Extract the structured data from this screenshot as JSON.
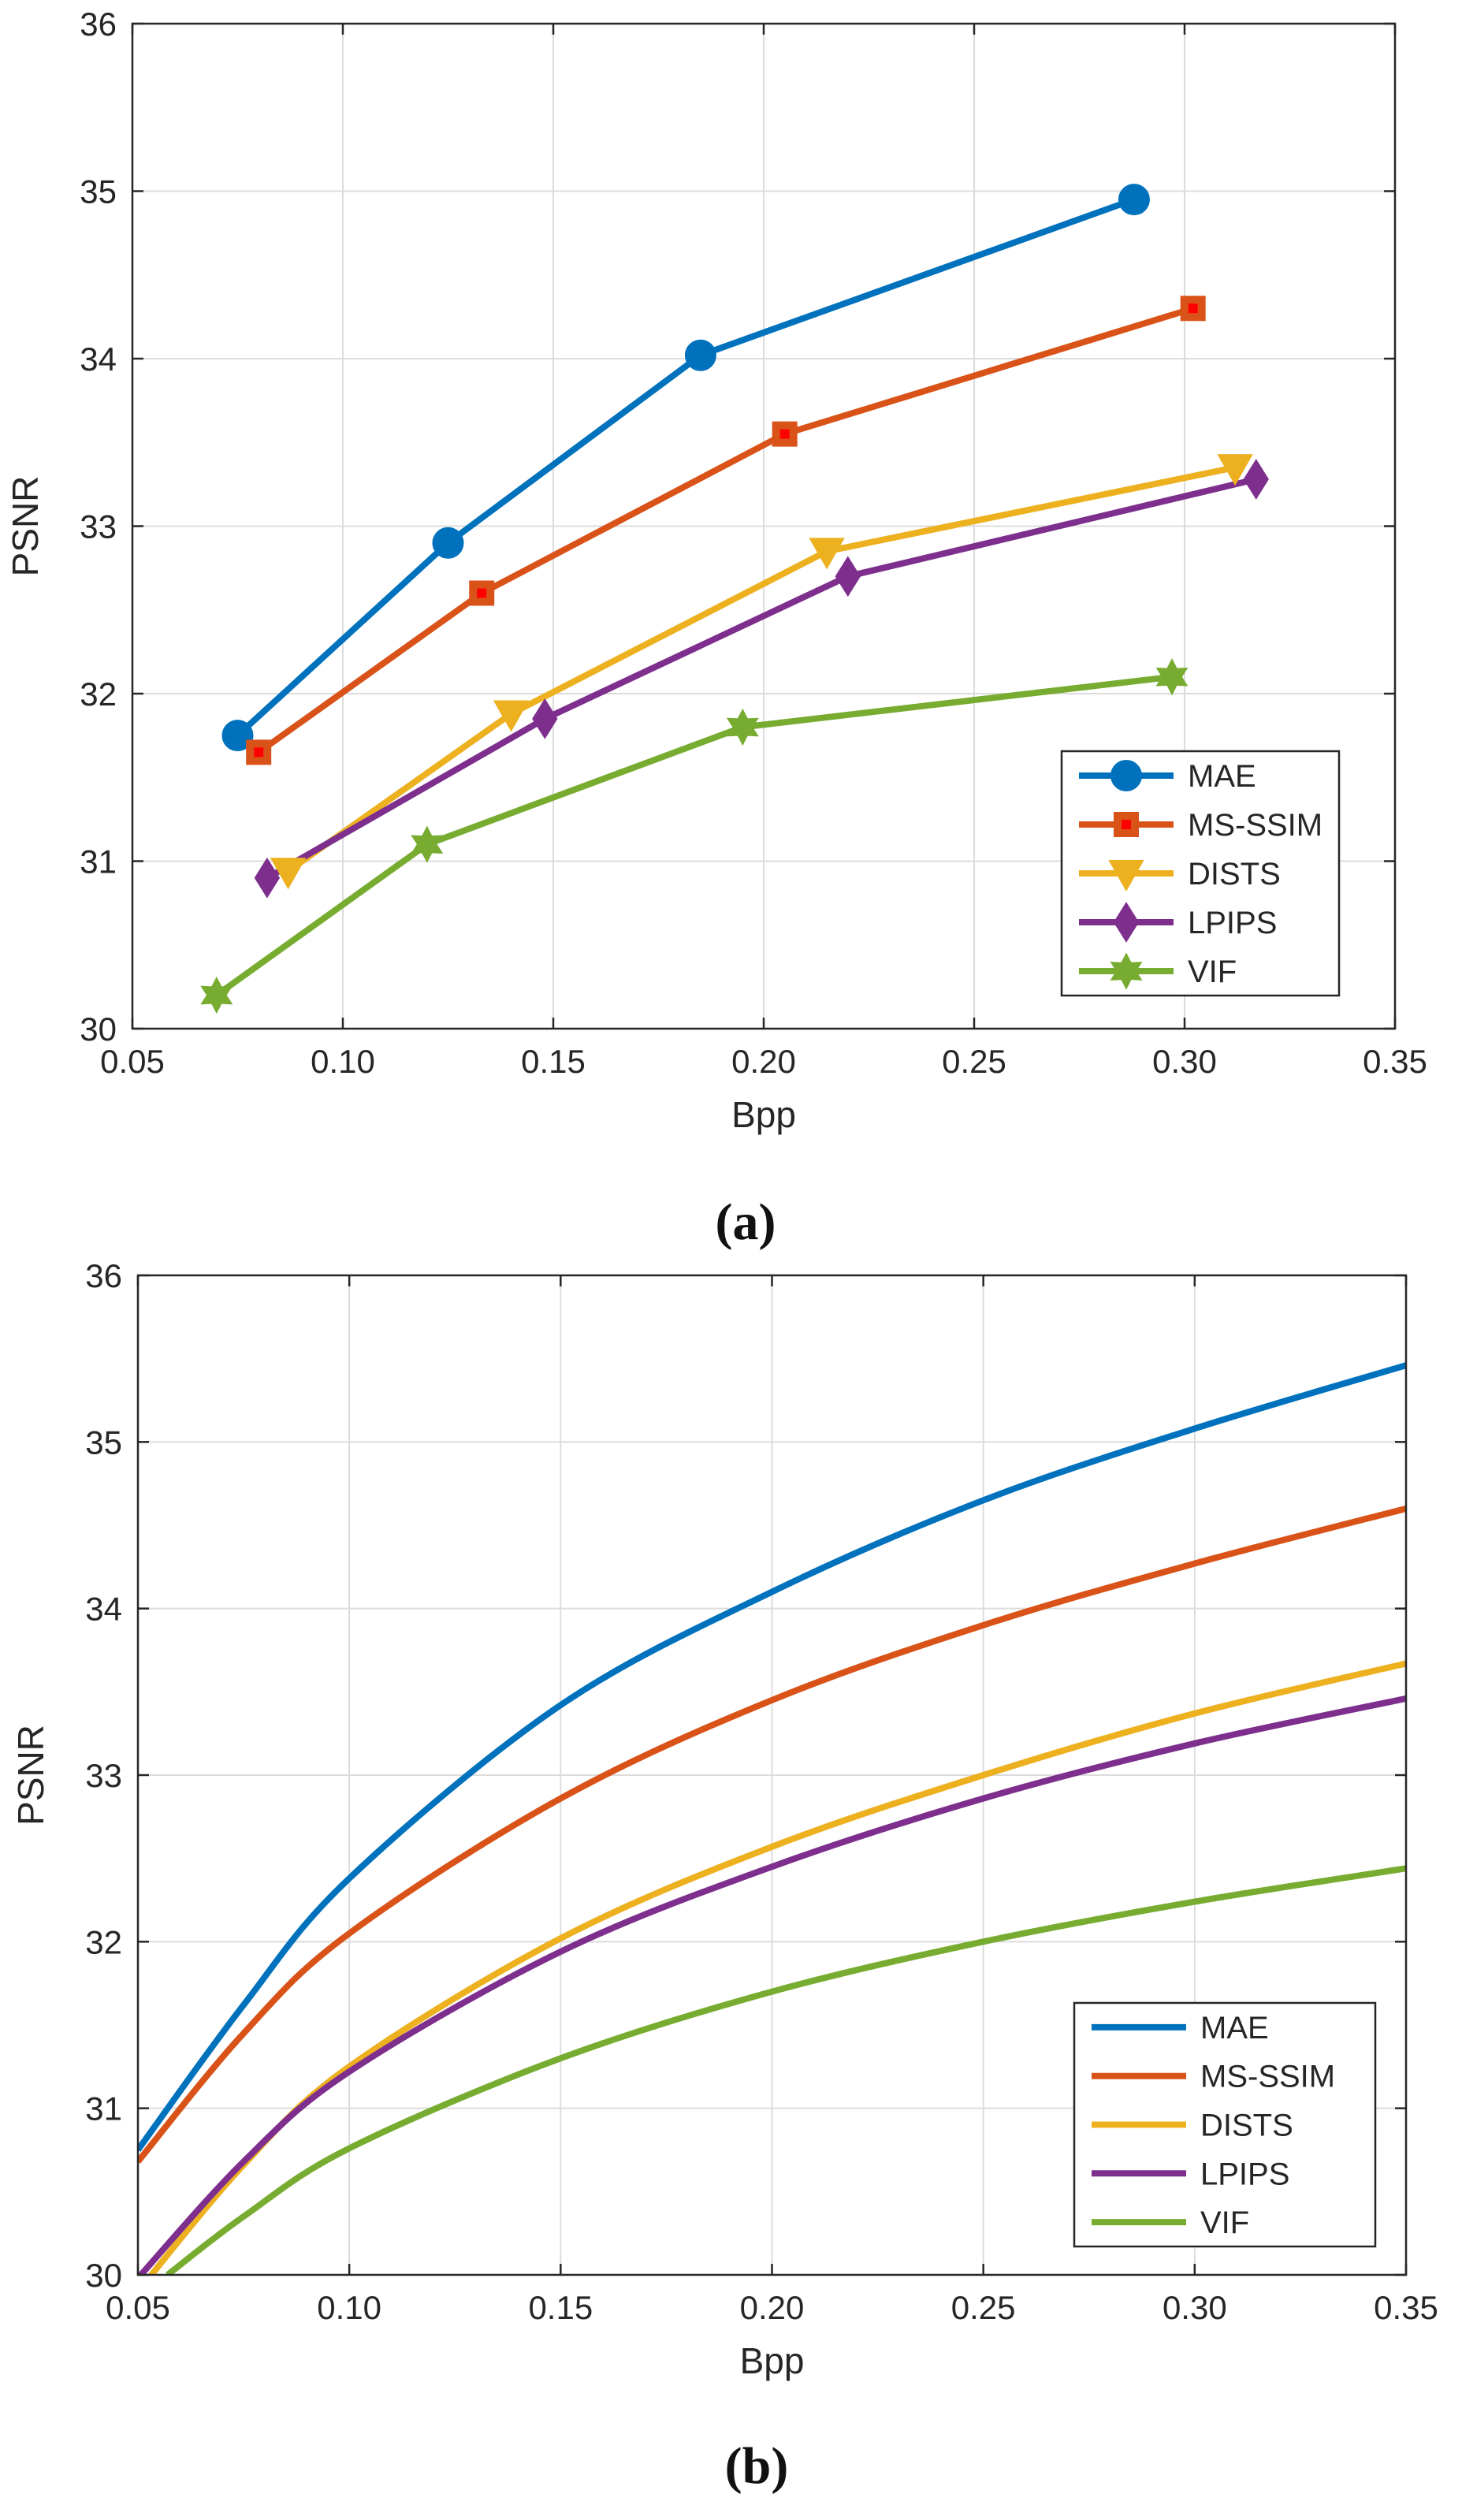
{
  "colors": {
    "MAE": "#0072BD",
    "MS-SSIM": "#D95319",
    "DISTS": "#EDB120",
    "LPIPS": "#7E2F8E",
    "VIF": "#77AC30"
  },
  "chart_data": [
    {
      "type": "line",
      "panel_label": "(a)",
      "xlabel": "Bpp",
      "ylabel": "PSNR",
      "xlim": [
        0.05,
        0.35
      ],
      "ylim": [
        30,
        36
      ],
      "xticks": [
        "0.05",
        "0.10",
        "0.15",
        "0.20",
        "0.25",
        "0.30",
        "0.35"
      ],
      "yticks": [
        "30",
        "31",
        "32",
        "33",
        "34",
        "35",
        "36"
      ],
      "grid": true,
      "legend_position": "bottom-right",
      "series": [
        {
          "name": "MAE",
          "marker": "circle",
          "x": [
            0.075,
            0.125,
            0.185,
            0.288
          ],
          "y": [
            31.75,
            32.9,
            34.02,
            34.95
          ]
        },
        {
          "name": "MS-SSIM",
          "marker": "square",
          "x": [
            0.08,
            0.133,
            0.205,
            0.302
          ],
          "y": [
            31.65,
            32.6,
            33.55,
            34.3
          ]
        },
        {
          "name": "DISTS",
          "marker": "triangle-down",
          "x": [
            0.087,
            0.14,
            0.215,
            0.312
          ],
          "y": [
            30.94,
            31.88,
            32.85,
            33.35
          ]
        },
        {
          "name": "LPIPS",
          "marker": "diamond",
          "x": [
            0.082,
            0.148,
            0.22,
            0.317
          ],
          "y": [
            30.9,
            31.85,
            32.7,
            33.28
          ]
        },
        {
          "name": "VIF",
          "marker": "hexagram",
          "x": [
            0.07,
            0.12,
            0.195,
            0.297
          ],
          "y": [
            30.2,
            31.1,
            31.8,
            32.1
          ]
        }
      ]
    },
    {
      "type": "line",
      "panel_label": "(b)",
      "xlabel": "Bpp",
      "ylabel": "PSNR",
      "xlim": [
        0.05,
        0.35
      ],
      "ylim": [
        30,
        36
      ],
      "xticks": [
        "0.05",
        "0.10",
        "0.15",
        "0.20",
        "0.25",
        "0.30",
        "0.35"
      ],
      "yticks": [
        "30",
        "31",
        "32",
        "33",
        "34",
        "35",
        "36"
      ],
      "grid": true,
      "legend_position": "bottom-right",
      "series": [
        {
          "name": "MAE",
          "x": [
            0.05,
            0.075,
            0.1,
            0.15,
            0.2,
            0.25,
            0.3,
            0.35
          ],
          "y": [
            30.75,
            31.62,
            32.38,
            33.42,
            34.1,
            34.65,
            35.08,
            35.46
          ]
        },
        {
          "name": "MS-SSIM",
          "x": [
            0.05,
            0.075,
            0.1,
            0.15,
            0.2,
            0.25,
            0.3,
            0.35
          ],
          "y": [
            30.68,
            31.45,
            32.05,
            32.86,
            33.45,
            33.9,
            34.27,
            34.6
          ]
        },
        {
          "name": "DISTS",
          "x": [
            0.05,
            0.075,
            0.1,
            0.15,
            0.2,
            0.25,
            0.3,
            0.35
          ],
          "y": [
            29.9,
            30.66,
            31.25,
            32.02,
            32.57,
            33.0,
            33.37,
            33.67
          ]
        },
        {
          "name": "LPIPS",
          "x": [
            0.05,
            0.075,
            0.1,
            0.15,
            0.2,
            0.25,
            0.3,
            0.35
          ],
          "y": [
            29.98,
            30.68,
            31.22,
            31.94,
            32.45,
            32.86,
            33.19,
            33.46
          ]
        },
        {
          "name": "VIF",
          "x": [
            0.057,
            0.075,
            0.1,
            0.15,
            0.2,
            0.25,
            0.3,
            0.35
          ],
          "y": [
            30.0,
            30.35,
            30.76,
            31.3,
            31.7,
            32.0,
            32.24,
            32.44
          ]
        }
      ]
    }
  ]
}
